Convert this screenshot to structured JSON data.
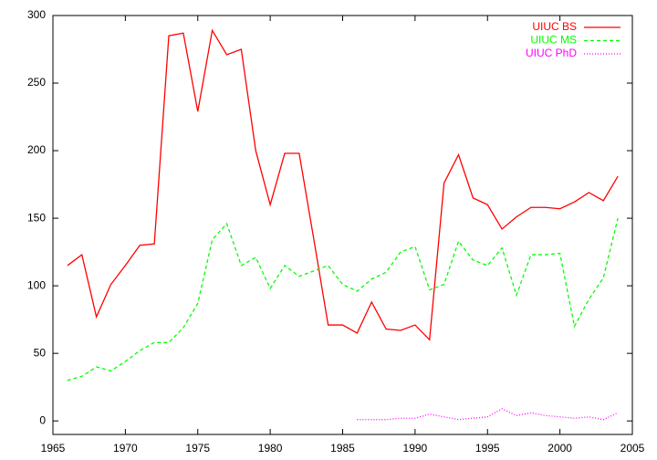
{
  "chart_data": {
    "type": "line",
    "x": [
      1966,
      1967,
      1968,
      1969,
      1970,
      1971,
      1972,
      1973,
      1974,
      1975,
      1976,
      1977,
      1978,
      1979,
      1980,
      1981,
      1982,
      1983,
      1984,
      1985,
      1986,
      1987,
      1988,
      1989,
      1990,
      1991,
      1992,
      1993,
      1994,
      1995,
      1996,
      1997,
      1998,
      1999,
      2000,
      2001,
      2002,
      2003,
      2004
    ],
    "series": [
      {
        "name": "UIUC BS",
        "color": "#ff0000",
        "dash": "solid",
        "values": [
          115,
          123,
          77,
          101,
          115,
          130,
          131,
          285,
          287,
          229,
          289,
          271,
          275,
          200,
          160,
          198,
          198,
          135,
          71,
          71,
          65,
          88,
          68,
          67,
          71,
          60,
          176,
          197,
          165,
          160,
          142,
          151,
          158,
          158,
          157,
          162,
          169,
          163,
          181
        ]
      },
      {
        "name": "UIUC MS",
        "color": "#00ff00",
        "dash": "dashed",
        "values": [
          30,
          33,
          40,
          37,
          44,
          52,
          58,
          58,
          69,
          87,
          134,
          146,
          115,
          121,
          98,
          115,
          107,
          111,
          115,
          101,
          96,
          105,
          110,
          125,
          129,
          97,
          101,
          133,
          119,
          115,
          128,
          93,
          123,
          123,
          124,
          70,
          90,
          106,
          150
        ]
      },
      {
        "name": "UIUC PhD",
        "color": "#ff00ff",
        "dash": "dotted",
        "values": [
          null,
          null,
          null,
          null,
          null,
          null,
          null,
          null,
          null,
          null,
          null,
          null,
          null,
          null,
          null,
          null,
          null,
          null,
          null,
          null,
          1,
          1,
          1,
          2,
          2,
          5,
          3,
          1,
          2,
          3,
          9,
          4,
          6,
          4,
          3,
          2,
          3,
          1,
          6
        ]
      }
    ],
    "xlim": [
      1965,
      2005
    ],
    "xticks": [
      1965,
      1970,
      1975,
      1980,
      1985,
      1990,
      1995,
      2000,
      2005
    ],
    "ylim": [
      -10,
      300
    ],
    "yticks": [
      0,
      50,
      100,
      150,
      200,
      250,
      300
    ],
    "grid": false,
    "legend": "top-right"
  }
}
